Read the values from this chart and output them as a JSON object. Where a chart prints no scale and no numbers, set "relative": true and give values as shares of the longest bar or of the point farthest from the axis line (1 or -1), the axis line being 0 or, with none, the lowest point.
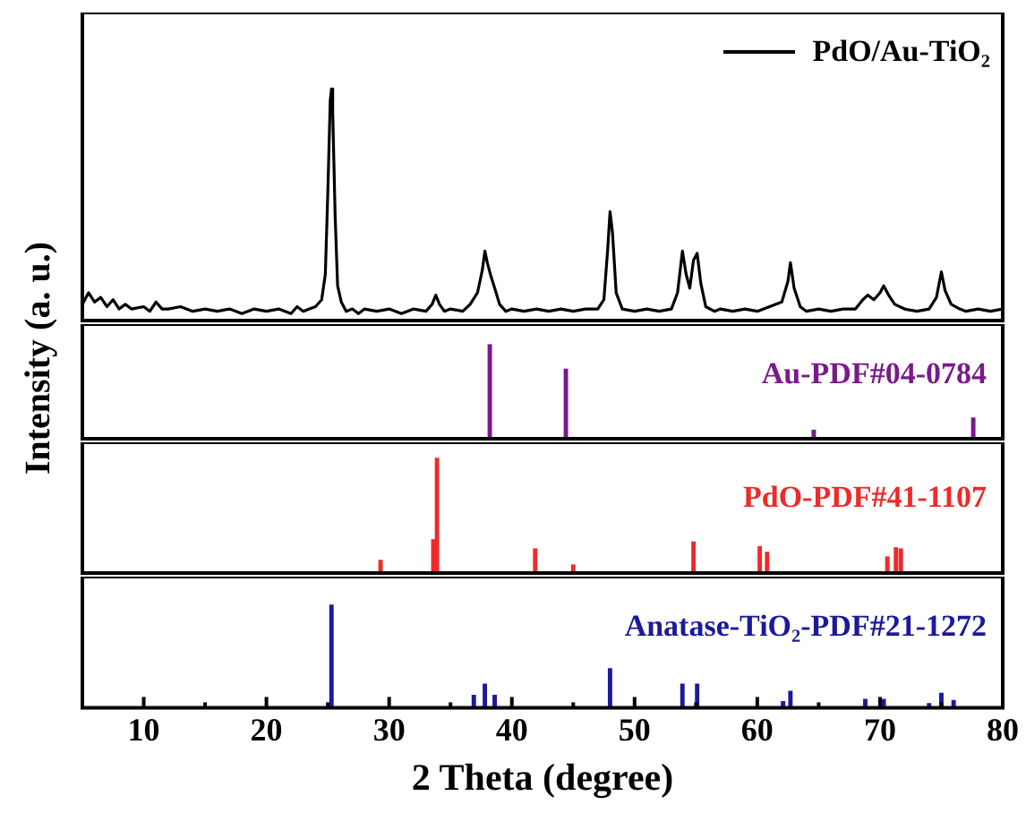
{
  "chart_data": [
    {
      "type": "line",
      "relative": true,
      "xlim": [
        5,
        80
      ],
      "tick_labels": false,
      "ylabel": "Intensity (a. u.)",
      "legend": "top right",
      "marker": "none",
      "line_style": "solid",
      "x": [
        5,
        5.5,
        6,
        6.5,
        7,
        7.5,
        8,
        8.5,
        9,
        10,
        10.5,
        11,
        11.5,
        12,
        13,
        14,
        15,
        16,
        17,
        18,
        19,
        20,
        21,
        22,
        22.5,
        23,
        23.5,
        24,
        24.5,
        24.8,
        25.0,
        25.2,
        25.3,
        25.4,
        25.6,
        25.8,
        26.1,
        26.5,
        27,
        27.5,
        28,
        29,
        30,
        31,
        32,
        33,
        33.5,
        33.8,
        34.1,
        34.5,
        35,
        36,
        36.6,
        37.2,
        37.6,
        37.8,
        38.0,
        38.3,
        38.6,
        39,
        39.5,
        40,
        41,
        42,
        43,
        44,
        45,
        46,
        47,
        47.5,
        47.8,
        48.0,
        48.2,
        48.5,
        49,
        50,
        51,
        52,
        53,
        53.5,
        53.9,
        54.2,
        54.5,
        54.8,
        55.1,
        55.4,
        55.8,
        56.5,
        57,
        58,
        59,
        60,
        61,
        62,
        62.5,
        62.7,
        63,
        63.5,
        64,
        65,
        66,
        67,
        68,
        68.6,
        69,
        69.5,
        70,
        70.3,
        70.7,
        71.2,
        72,
        73,
        74,
        74.6,
        75.0,
        75.3,
        75.8,
        76.5,
        77,
        78,
        79,
        80
      ],
      "series": [
        {
          "name": "PdO/Au-TiO₂",
          "color": "#000000",
          "values": [
            0.07,
            0.12,
            0.08,
            0.1,
            0.06,
            0.09,
            0.05,
            0.07,
            0.05,
            0.06,
            0.04,
            0.08,
            0.05,
            0.05,
            0.06,
            0.04,
            0.05,
            0.04,
            0.05,
            0.03,
            0.05,
            0.04,
            0.05,
            0.03,
            0.06,
            0.04,
            0.05,
            0.06,
            0.09,
            0.2,
            0.55,
            0.95,
            1,
            0.9,
            0.45,
            0.15,
            0.08,
            0.04,
            0.05,
            0.03,
            0.05,
            0.04,
            0.05,
            0.03,
            0.05,
            0.04,
            0.07,
            0.11,
            0.07,
            0.04,
            0.05,
            0.04,
            0.07,
            0.12,
            0.22,
            0.3,
            0.25,
            0.19,
            0.14,
            0.07,
            0.04,
            0.05,
            0.04,
            0.05,
            0.04,
            0.05,
            0.04,
            0.05,
            0.05,
            0.09,
            0.3,
            0.47,
            0.38,
            0.12,
            0.05,
            0.04,
            0.05,
            0.04,
            0.05,
            0.12,
            0.3,
            0.2,
            0.14,
            0.26,
            0.29,
            0.16,
            0.06,
            0.04,
            0.05,
            0.04,
            0.05,
            0.04,
            0.06,
            0.08,
            0.17,
            0.25,
            0.14,
            0.06,
            0.04,
            0.05,
            0.04,
            0.05,
            0.05,
            0.09,
            0.11,
            0.09,
            0.12,
            0.15,
            0.11,
            0.07,
            0.05,
            0.04,
            0.05,
            0.1,
            0.21,
            0.13,
            0.07,
            0.05,
            0.04,
            0.05,
            0.04,
            0.05
          ]
        }
      ]
    },
    {
      "type": "bar",
      "relative": true,
      "xlim": [
        5,
        80
      ],
      "tick_labels": false,
      "x": [
        38.2,
        44.4,
        64.6,
        77.6
      ],
      "series": [
        {
          "name": "Au-PDF#04-0784",
          "color": "#7a1a8a",
          "values": [
            1,
            0.74,
            0.09,
            0.22
          ]
        }
      ]
    },
    {
      "type": "bar",
      "relative": true,
      "xlim": [
        5,
        80
      ],
      "tick_labels": false,
      "x": [
        29.3,
        33.6,
        33.9,
        41.9,
        45.0,
        54.8,
        60.2,
        60.8,
        70.6,
        71.3,
        71.7
      ],
      "series": [
        {
          "name": "PdO-PDF#41-1107",
          "color": "#ee2a2a",
          "values": [
            0.11,
            0.29,
            1,
            0.21,
            0.07,
            0.27,
            0.23,
            0.18,
            0.14,
            0.22,
            0.21
          ]
        }
      ]
    },
    {
      "type": "bar",
      "relative": true,
      "xlim": [
        5,
        80
      ],
      "tick_labels": "x",
      "xlabel": "2 Theta (degree)",
      "xticks": [
        10,
        {
          "value": 15,
          "label": null
        },
        20,
        {
          "value": 25,
          "label": null
        },
        30,
        {
          "value": 35,
          "label": null
        },
        40,
        {
          "value": 45,
          "label": null
        },
        50,
        {
          "value": 55,
          "label": null
        },
        60,
        {
          "value": 65,
          "label": null
        },
        70,
        {
          "value": 75,
          "label": null
        },
        80
      ],
      "x": [
        25.3,
        36.9,
        37.8,
        38.6,
        48.0,
        53.9,
        55.1,
        62.1,
        62.7,
        68.8,
        70.3,
        74.0,
        75.0,
        76.0
      ],
      "series": [
        {
          "name": "Anatase-TiO₂-PDF#21-1272",
          "color": "#1a1a9a",
          "values": [
            1,
            0.12,
            0.23,
            0.12,
            0.38,
            0.23,
            0.23,
            0.06,
            0.16,
            0.08,
            0.08,
            0.04,
            0.14,
            0.07
          ]
        }
      ]
    }
  ]
}
